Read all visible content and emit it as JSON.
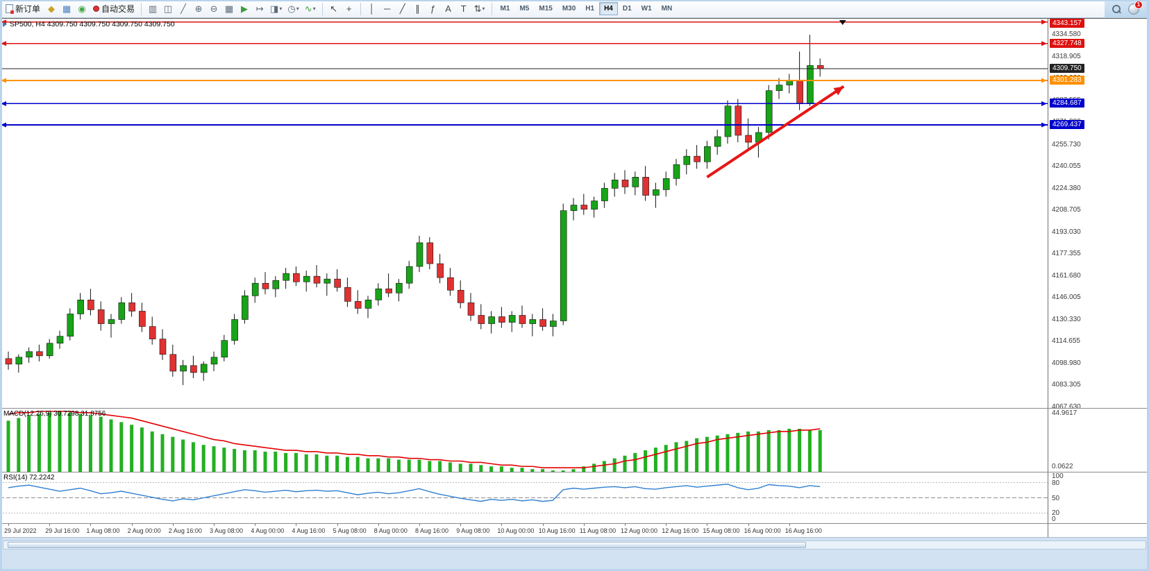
{
  "window": {
    "notification_count": "1"
  },
  "toolbar": {
    "dropdown_glyph": "▾",
    "new_order": {
      "label": "新订单"
    },
    "autotrading": {
      "label": "自动交易"
    },
    "std_icons": [
      {
        "name": "metaeditor-icon",
        "glyph": "◆",
        "color": "#c9a227"
      },
      {
        "name": "market-watch-icon",
        "glyph": "▦",
        "color": "#4a7fbf"
      },
      {
        "name": "signals-icon",
        "glyph": "◉",
        "color": "#4ca64c"
      }
    ],
    "chart_icons": [
      {
        "name": "bar-chart-icon",
        "glyph": "▥",
        "color": "#5a6b7a"
      },
      {
        "name": "candlestick-chart-icon",
        "glyph": "◫",
        "color": "#5a6b7a"
      },
      {
        "name": "line-chart-icon",
        "glyph": "╱",
        "color": "#5a6b7a"
      },
      {
        "name": "zoom-in-icon",
        "glyph": "⊕",
        "color": "#5a6b7a"
      },
      {
        "name": "zoom-out-icon",
        "glyph": "⊖",
        "color": "#5a6b7a"
      },
      {
        "name": "tile-windows-icon",
        "glyph": "▦",
        "color": "#5a6b7a"
      },
      {
        "name": "auto-scroll-icon",
        "glyph": "▶",
        "color": "#3f9d3f"
      },
      {
        "name": "chart-shift-icon",
        "glyph": "↦",
        "color": "#5a6b7a"
      },
      {
        "name": "new-chart-icon",
        "glyph": "◨",
        "color": "#5a6b7a",
        "dropdown": true
      },
      {
        "name": "periods-icon",
        "glyph": "◷",
        "color": "#5a6b7a",
        "dropdown": true
      },
      {
        "name": "indicators-icon",
        "glyph": "∿",
        "color": "#3f9d3f",
        "dropdown": true
      }
    ],
    "cursor_icons": [
      {
        "name": "cursor-icon",
        "glyph": "↖",
        "color": "#444444"
      },
      {
        "name": "crosshair-icon",
        "glyph": "+",
        "color": "#444444"
      }
    ],
    "line_tools": [
      {
        "name": "vertical-line-icon",
        "glyph": "│",
        "color": "#444444"
      },
      {
        "name": "horizontal-line-icon",
        "glyph": "─",
        "color": "#444444"
      },
      {
        "name": "trendline-icon",
        "glyph": "╱",
        "color": "#444444"
      },
      {
        "name": "equidistant-channel-icon",
        "glyph": "∥",
        "color": "#444444"
      },
      {
        "name": "fibonacci-icon",
        "glyph": "ƒ",
        "color": "#444444"
      },
      {
        "name": "text-icon",
        "glyph": "A",
        "color": "#444444"
      },
      {
        "name": "label-icon",
        "glyph": "T",
        "color": "#444444"
      },
      {
        "name": "arrows-tool-icon",
        "glyph": "⇅",
        "color": "#444444",
        "dropdown": true
      }
    ],
    "timeframes": [
      {
        "label": "M1"
      },
      {
        "label": "M5"
      },
      {
        "label": "M15"
      },
      {
        "label": "M30"
      },
      {
        "label": "H1"
      },
      {
        "label": "H4",
        "active": true
      },
      {
        "label": "D1"
      },
      {
        "label": "W1"
      },
      {
        "label": "MN"
      }
    ]
  },
  "chart": {
    "title": "SP500, H4  4309.750 4309.750 4309.750 4309.750",
    "symbol": "SP500",
    "period": "H4",
    "open": "4309.750",
    "high": "4309.750",
    "low": "4309.750",
    "close": "4309.750"
  },
  "chart_data": {
    "type": "candlestick",
    "symbol": "SP500",
    "timeframe": "H4",
    "price_axis_ticks": [
      "4334.580",
      "4318.905",
      "4303.230",
      "4287.555",
      "4271.880",
      "4255.730",
      "4240.055",
      "4224.380",
      "4208.705",
      "4193.030",
      "4177.355",
      "4161.680",
      "4146.005",
      "4130.330",
      "4114.655",
      "4098.980",
      "4083.305",
      "4067.630"
    ],
    "time_labels": [
      "29 Jul 2022",
      "29 Jul 16:00",
      "1 Aug 08:00",
      "2 Aug 00:00",
      "2 Aug 16:00",
      "3 Aug 08:00",
      "4 Aug 00:00",
      "4 Aug 16:00",
      "5 Aug 08:00",
      "8 Aug 00:00",
      "8 Aug 16:00",
      "9 Aug 08:00",
      "10 Aug 00:00",
      "10 Aug 16:00",
      "11 Aug 08:00",
      "12 Aug 00:00",
      "12 Aug 16:00",
      "15 Aug 08:00",
      "16 Aug 00:00",
      "16 Aug 16:00"
    ],
    "time_label_step": 4,
    "levels": [
      {
        "label": "4343.157",
        "price": 4343.157,
        "color": "#dd1111",
        "width": 1.6
      },
      {
        "label": "4327.748",
        "price": 4327.748,
        "color": "#dd1111",
        "width": 1.6
      },
      {
        "label": "4309.750",
        "price": 4309.75,
        "color": "#222222",
        "width": 1,
        "current": true
      },
      {
        "label": "4301.283",
        "price": 4301.283,
        "color": "#ff9000",
        "width": 2
      },
      {
        "label": "4284.687",
        "price": 4284.687,
        "color": "#0000cc",
        "width": 1.6
      },
      {
        "label": "4269.437",
        "price": 4269.437,
        "color": "#0000cc",
        "width": 1.6
      }
    ],
    "candles": [
      [
        4102,
        4107,
        4094,
        4098
      ],
      [
        4098,
        4105,
        4092,
        4103
      ],
      [
        4103,
        4110,
        4099,
        4107
      ],
      [
        4107,
        4112,
        4100,
        4104
      ],
      [
        4104,
        4116,
        4102,
        4113
      ],
      [
        4113,
        4122,
        4109,
        4118
      ],
      [
        4118,
        4138,
        4115,
        4134
      ],
      [
        4134,
        4149,
        4130,
        4144
      ],
      [
        4144,
        4152,
        4133,
        4137
      ],
      [
        4137,
        4143,
        4122,
        4127
      ],
      [
        4127,
        4134,
        4117,
        4130
      ],
      [
        4130,
        4146,
        4127,
        4142
      ],
      [
        4142,
        4149,
        4132,
        4136
      ],
      [
        4136,
        4142,
        4121,
        4125
      ],
      [
        4125,
        4132,
        4112,
        4116
      ],
      [
        4116,
        4123,
        4101,
        4105
      ],
      [
        4105,
        4112,
        4089,
        4093
      ],
      [
        4093,
        4101,
        4083,
        4097
      ],
      [
        4097,
        4104,
        4088,
        4092
      ],
      [
        4092,
        4100,
        4086,
        4098
      ],
      [
        4098,
        4107,
        4093,
        4103
      ],
      [
        4103,
        4119,
        4100,
        4115
      ],
      [
        4115,
        4134,
        4112,
        4130
      ],
      [
        4130,
        4151,
        4127,
        4147
      ],
      [
        4147,
        4160,
        4142,
        4156
      ],
      [
        4156,
        4164,
        4148,
        4152
      ],
      [
        4152,
        4161,
        4146,
        4158
      ],
      [
        4158,
        4167,
        4152,
        4163
      ],
      [
        4163,
        4168,
        4154,
        4157
      ],
      [
        4157,
        4165,
        4150,
        4161
      ],
      [
        4161,
        4169,
        4153,
        4156
      ],
      [
        4156,
        4163,
        4147,
        4159
      ],
      [
        4159,
        4166,
        4150,
        4153
      ],
      [
        4153,
        4160,
        4139,
        4143
      ],
      [
        4143,
        4151,
        4134,
        4138
      ],
      [
        4138,
        4147,
        4131,
        4144
      ],
      [
        4144,
        4156,
        4140,
        4152
      ],
      [
        4152,
        4163,
        4146,
        4149
      ],
      [
        4149,
        4159,
        4143,
        4156
      ],
      [
        4156,
        4172,
        4152,
        4168
      ],
      [
        4168,
        4190,
        4164,
        4185
      ],
      [
        4185,
        4189,
        4166,
        4170
      ],
      [
        4170,
        4177,
        4156,
        4160
      ],
      [
        4160,
        4167,
        4147,
        4151
      ],
      [
        4151,
        4158,
        4138,
        4142
      ],
      [
        4142,
        4149,
        4129,
        4133
      ],
      [
        4133,
        4141,
        4123,
        4127
      ],
      [
        4127,
        4136,
        4120,
        4132
      ],
      [
        4132,
        4139,
        4124,
        4128
      ],
      [
        4128,
        4136,
        4121,
        4133
      ],
      [
        4133,
        4140,
        4124,
        4127
      ],
      [
        4127,
        4134,
        4118,
        4130
      ],
      [
        4130,
        4138,
        4122,
        4125
      ],
      [
        4125,
        4134,
        4118,
        4129
      ],
      [
        4129,
        4213,
        4126,
        4208
      ],
      [
        4208,
        4217,
        4201,
        4212
      ],
      [
        4212,
        4220,
        4205,
        4209
      ],
      [
        4209,
        4218,
        4203,
        4215
      ],
      [
        4215,
        4228,
        4210,
        4224
      ],
      [
        4224,
        4235,
        4218,
        4230
      ],
      [
        4230,
        4237,
        4220,
        4225
      ],
      [
        4225,
        4236,
        4219,
        4232
      ],
      [
        4232,
        4240,
        4215,
        4219
      ],
      [
        4219,
        4228,
        4210,
        4223
      ],
      [
        4223,
        4236,
        4218,
        4231
      ],
      [
        4231,
        4245,
        4226,
        4241
      ],
      [
        4241,
        4252,
        4234,
        4247
      ],
      [
        4247,
        4255,
        4238,
        4243
      ],
      [
        4243,
        4258,
        4238,
        4254
      ],
      [
        4254,
        4266,
        4248,
        4261
      ],
      [
        4261,
        4287,
        4256,
        4283
      ],
      [
        4283,
        4288,
        4257,
        4262
      ],
      [
        4262,
        4274,
        4252,
        4257
      ],
      [
        4257,
        4268,
        4246,
        4264
      ],
      [
        4264,
        4298,
        4259,
        4294
      ],
      [
        4294,
        4303,
        4288,
        4298
      ],
      [
        4298,
        4306,
        4292,
        4301
      ],
      [
        4301,
        4322,
        4280,
        4285
      ],
      [
        4285,
        4334,
        4283,
        4312
      ],
      [
        4312,
        4317,
        4304,
        4309.75
      ]
    ],
    "macd": {
      "label": "MACD(12,26,9) 30.7298 31.8756",
      "value": "30.7298",
      "signal_value": "31.8756",
      "axis_ticks": [
        "44.9617",
        "0.0622"
      ],
      "range": [
        0,
        47
      ],
      "histogram": [
        38,
        40,
        42,
        43,
        44,
        45,
        44,
        43,
        42,
        41,
        39,
        37,
        35,
        33,
        30,
        28,
        26,
        24,
        22,
        20,
        19,
        18,
        17,
        16,
        16,
        15,
        15,
        14,
        14,
        13,
        13,
        12,
        12,
        11,
        11,
        10,
        10,
        10,
        9,
        9,
        9,
        8,
        8,
        7,
        6,
        6,
        5,
        4,
        4,
        3,
        3,
        2,
        2,
        1,
        1,
        2,
        4,
        6,
        8,
        10,
        12,
        14,
        16,
        18,
        20,
        22,
        23,
        25,
        26,
        27,
        28,
        29,
        30,
        30,
        31,
        31,
        32,
        32,
        31,
        31
      ],
      "signal": [
        43,
        44,
        44,
        45,
        45,
        45,
        45,
        44,
        44,
        43,
        42,
        41,
        40,
        38,
        36,
        34,
        32,
        30,
        28,
        26,
        24,
        23,
        21,
        20,
        19,
        18,
        17,
        16,
        16,
        15,
        15,
        14,
        14,
        13,
        13,
        12,
        12,
        11,
        11,
        10,
        10,
        9,
        9,
        8,
        8,
        7,
        7,
        6,
        5,
        5,
        4,
        4,
        3,
        3,
        3,
        3,
        3,
        4,
        5,
        6,
        8,
        9,
        11,
        13,
        15,
        17,
        19,
        21,
        22,
        24,
        25,
        26,
        27,
        28,
        29,
        30,
        30,
        31,
        31,
        32
      ]
    },
    "rsi": {
      "label": "RSI(14) 72.2242",
      "value": "72.2242",
      "axis_ticks": [
        "100",
        "80",
        "50",
        "20",
        "0"
      ],
      "range": [
        0,
        100
      ],
      "levels": [
        80,
        50,
        20
      ],
      "values": [
        70,
        73,
        75,
        71,
        67,
        63,
        66,
        69,
        64,
        58,
        60,
        63,
        59,
        55,
        51,
        47,
        44,
        48,
        46,
        50,
        54,
        58,
        62,
        66,
        64,
        61,
        63,
        65,
        62,
        64,
        65,
        63,
        64,
        60,
        56,
        59,
        61,
        58,
        60,
        64,
        68,
        62,
        57,
        53,
        49,
        46,
        43,
        47,
        45,
        47,
        44,
        46,
        43,
        45,
        66,
        69,
        67,
        69,
        71,
        72,
        70,
        72,
        68,
        67,
        70,
        72,
        74,
        71,
        73,
        75,
        77,
        70,
        66,
        69,
        76,
        74,
        73,
        70,
        74,
        72.2
      ]
    },
    "annotations": [
      {
        "type": "trend-arrow",
        "color": "#e81515",
        "from": {
          "x_index": 68,
          "price": 4232
        },
        "to": {
          "x_index": 81.3,
          "price": 4297
        }
      },
      {
        "type": "bar-marker",
        "x_index": 81.2
      }
    ]
  },
  "colors": {
    "up": "#18a318",
    "down": "#e03232",
    "wick": "#111111",
    "macd_hist": "#22b022",
    "macd_signal": "#e30000",
    "rsi_line": "#2f7fd0",
    "axis_text": "#3a3a3a"
  }
}
